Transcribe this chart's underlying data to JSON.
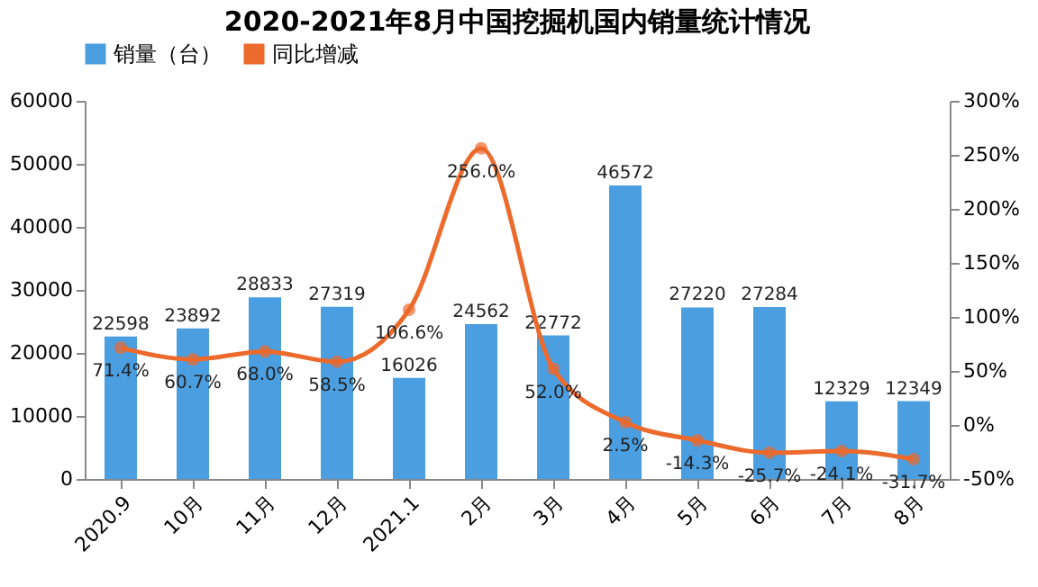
{
  "chart_data": {
    "type": "bar",
    "title": "2020-2021年8月中国挖掘机国内销量统计情况",
    "categories": [
      "2020.9",
      "10月",
      "11月",
      "12月",
      "2021.1",
      "2月",
      "3月",
      "4月",
      "5月",
      "6月",
      "7月",
      "8月"
    ],
    "series": [
      {
        "name": "销量（台）",
        "color": "#4b9fe1",
        "values": [
          22598,
          23892,
          28833,
          27319,
          16026,
          24562,
          22772,
          46572,
          27220,
          27284,
          12329,
          12349
        ],
        "value_labels": [
          "22598",
          "23892",
          "28833",
          "27319",
          "16026",
          "24562",
          "22772",
          "46572",
          "27220",
          "27284",
          "12329",
          "12349"
        ]
      },
      {
        "name": "同比增减",
        "type": "line",
        "axis": "y2",
        "color": "#ec6a2c",
        "values": [
          71.4,
          60.7,
          68.0,
          58.5,
          106.6,
          256.0,
          52.0,
          2.5,
          -14.3,
          -25.7,
          -24.1,
          -31.7
        ],
        "value_labels": [
          "71.4%",
          "60.7%",
          "68.0%",
          "58.5%",
          "106.6%",
          "256.0%",
          "52.0%",
          "2.5%",
          "-14.3%",
          "-25.7%",
          "-24.1%",
          "-31.7%"
        ]
      }
    ],
    "ylim": [
      0,
      60000
    ],
    "yticks": [
      0,
      10000,
      20000,
      30000,
      40000,
      50000,
      60000
    ],
    "y2lim": [
      -50,
      300
    ],
    "y2ticks": [
      {
        "value": -50,
        "label": "-50%"
      },
      {
        "value": 0,
        "label": "0%"
      },
      {
        "value": 50,
        "label": "50%"
      },
      {
        "value": 100,
        "label": "100%"
      },
      {
        "value": 150,
        "label": "150%"
      },
      {
        "value": 200,
        "label": "200%"
      },
      {
        "value": 250,
        "label": "250%"
      },
      {
        "value": 300,
        "label": "300%"
      }
    ],
    "legend": "top",
    "marker": "circle",
    "grid": false
  }
}
